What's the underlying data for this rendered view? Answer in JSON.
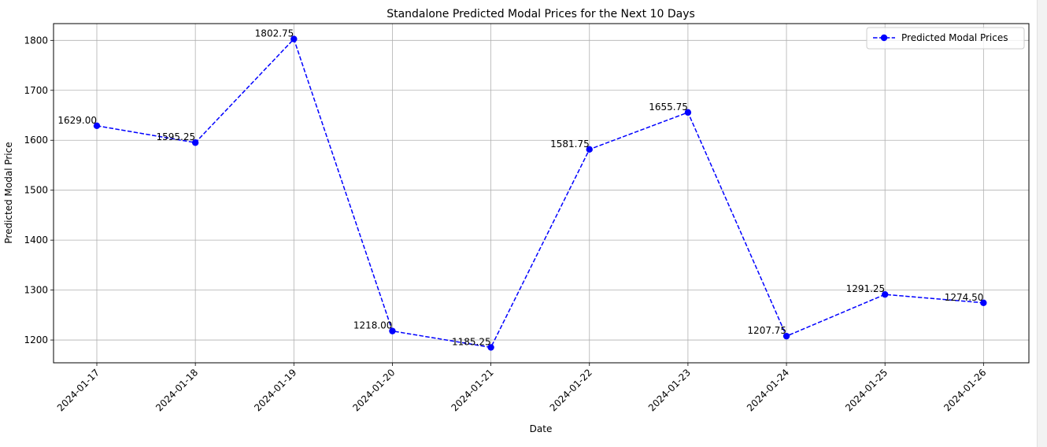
{
  "chart_data": {
    "type": "line",
    "title": "Standalone Predicted Modal Prices for the Next 10 Days",
    "xlabel": "Date",
    "ylabel": "Predicted Modal Price",
    "x": [
      "2024-01-17",
      "2024-01-18",
      "2024-01-19",
      "2024-01-20",
      "2024-01-21",
      "2024-01-22",
      "2024-01-23",
      "2024-01-24",
      "2024-01-25",
      "2024-01-26"
    ],
    "series": [
      {
        "name": "Predicted Modal Prices",
        "values": [
          1629.0,
          1595.25,
          1802.75,
          1218.0,
          1185.25,
          1581.75,
          1655.75,
          1207.75,
          1291.25,
          1274.5
        ],
        "labels": [
          "1629.00",
          "1595.25",
          "1802.75",
          "1218.00",
          "1185.25",
          "1581.75",
          "1655.75",
          "1207.75",
          "1291.25",
          "1274.50"
        ],
        "color": "#0000ff",
        "line_style": "dashed",
        "marker": "circle"
      }
    ],
    "y_ticks": [
      1200,
      1300,
      1400,
      1500,
      1600,
      1700,
      1800
    ],
    "ylim": [
      1154.4,
      1833.6
    ],
    "grid": true,
    "legend_position": "top-right",
    "x_tick_rotation": 45
  }
}
